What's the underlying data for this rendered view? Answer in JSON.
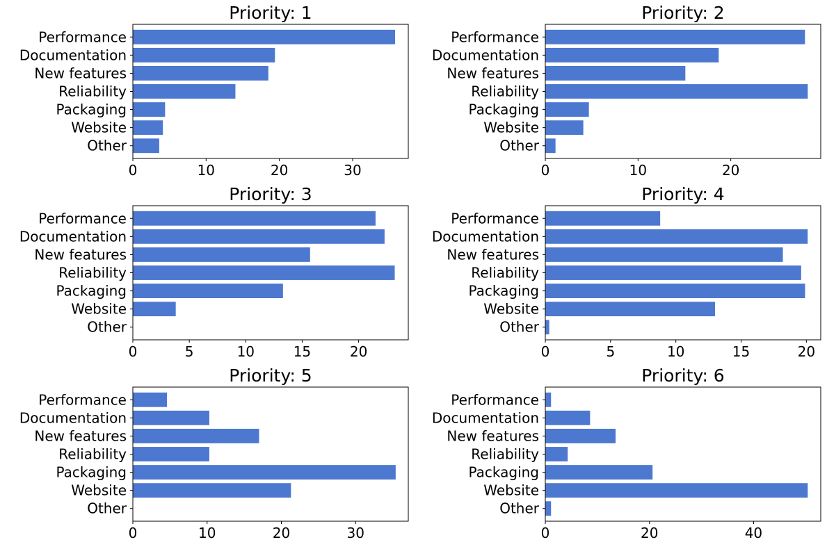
{
  "figure": {
    "bar_color": "#4c78d0",
    "frame_color": "#000000"
  },
  "chart_data": [
    {
      "type": "bar",
      "orientation": "horizontal",
      "title": "Priority: 1",
      "categories": [
        "Performance",
        "Documentation",
        "New features",
        "Reliability",
        "Packaging",
        "Website",
        "Other"
      ],
      "values": [
        35.8,
        19.4,
        18.5,
        14.0,
        4.4,
        4.1,
        3.6
      ],
      "xlim": [
        0,
        37.6
      ],
      "xticks": [
        0,
        10,
        20,
        30
      ],
      "xlabel": "",
      "ylabel": ""
    },
    {
      "type": "bar",
      "orientation": "horizontal",
      "title": "Priority: 2",
      "categories": [
        "Performance",
        "Documentation",
        "New features",
        "Reliability",
        "Packaging",
        "Website",
        "Other"
      ],
      "values": [
        28.0,
        18.7,
        15.1,
        28.3,
        4.7,
        4.1,
        1.1
      ],
      "xlim": [
        0,
        29.7
      ],
      "xticks": [
        0,
        10,
        20
      ],
      "xlabel": "",
      "ylabel": ""
    },
    {
      "type": "bar",
      "orientation": "horizontal",
      "title": "Priority: 3",
      "categories": [
        "Performance",
        "Documentation",
        "New features",
        "Reliability",
        "Packaging",
        "Website",
        "Other"
      ],
      "values": [
        21.5,
        22.3,
        15.7,
        23.2,
        13.3,
        3.8,
        0
      ],
      "xlim": [
        0,
        24.4
      ],
      "xticks": [
        0,
        5,
        10,
        15,
        20
      ],
      "xlabel": "",
      "ylabel": ""
    },
    {
      "type": "bar",
      "orientation": "horizontal",
      "title": "Priority: 4",
      "categories": [
        "Performance",
        "Documentation",
        "New features",
        "Reliability",
        "Packaging",
        "Website",
        "Other"
      ],
      "values": [
        8.8,
        20.1,
        18.2,
        19.6,
        19.9,
        13.0,
        0.3
      ],
      "xlim": [
        0,
        21.1
      ],
      "xticks": [
        0,
        5,
        10,
        15,
        20
      ],
      "xlabel": "",
      "ylabel": ""
    },
    {
      "type": "bar",
      "orientation": "horizontal",
      "title": "Priority: 5",
      "categories": [
        "Performance",
        "Documentation",
        "New features",
        "Reliability",
        "Packaging",
        "Website",
        "Other"
      ],
      "values": [
        4.6,
        10.3,
        17.0,
        10.3,
        35.4,
        21.3,
        0
      ],
      "xlim": [
        0,
        37.1
      ],
      "xticks": [
        0,
        10,
        20,
        30
      ],
      "xlabel": "",
      "ylabel": ""
    },
    {
      "type": "bar",
      "orientation": "horizontal",
      "title": "Priority: 6",
      "categories": [
        "Performance",
        "Documentation",
        "New features",
        "Reliability",
        "Packaging",
        "Website",
        "Other"
      ],
      "values": [
        1.1,
        8.6,
        13.5,
        4.3,
        20.6,
        50.4,
        1.1
      ],
      "xlim": [
        0,
        52.9
      ],
      "xticks": [
        0,
        20,
        40
      ],
      "xlabel": "",
      "ylabel": ""
    }
  ]
}
